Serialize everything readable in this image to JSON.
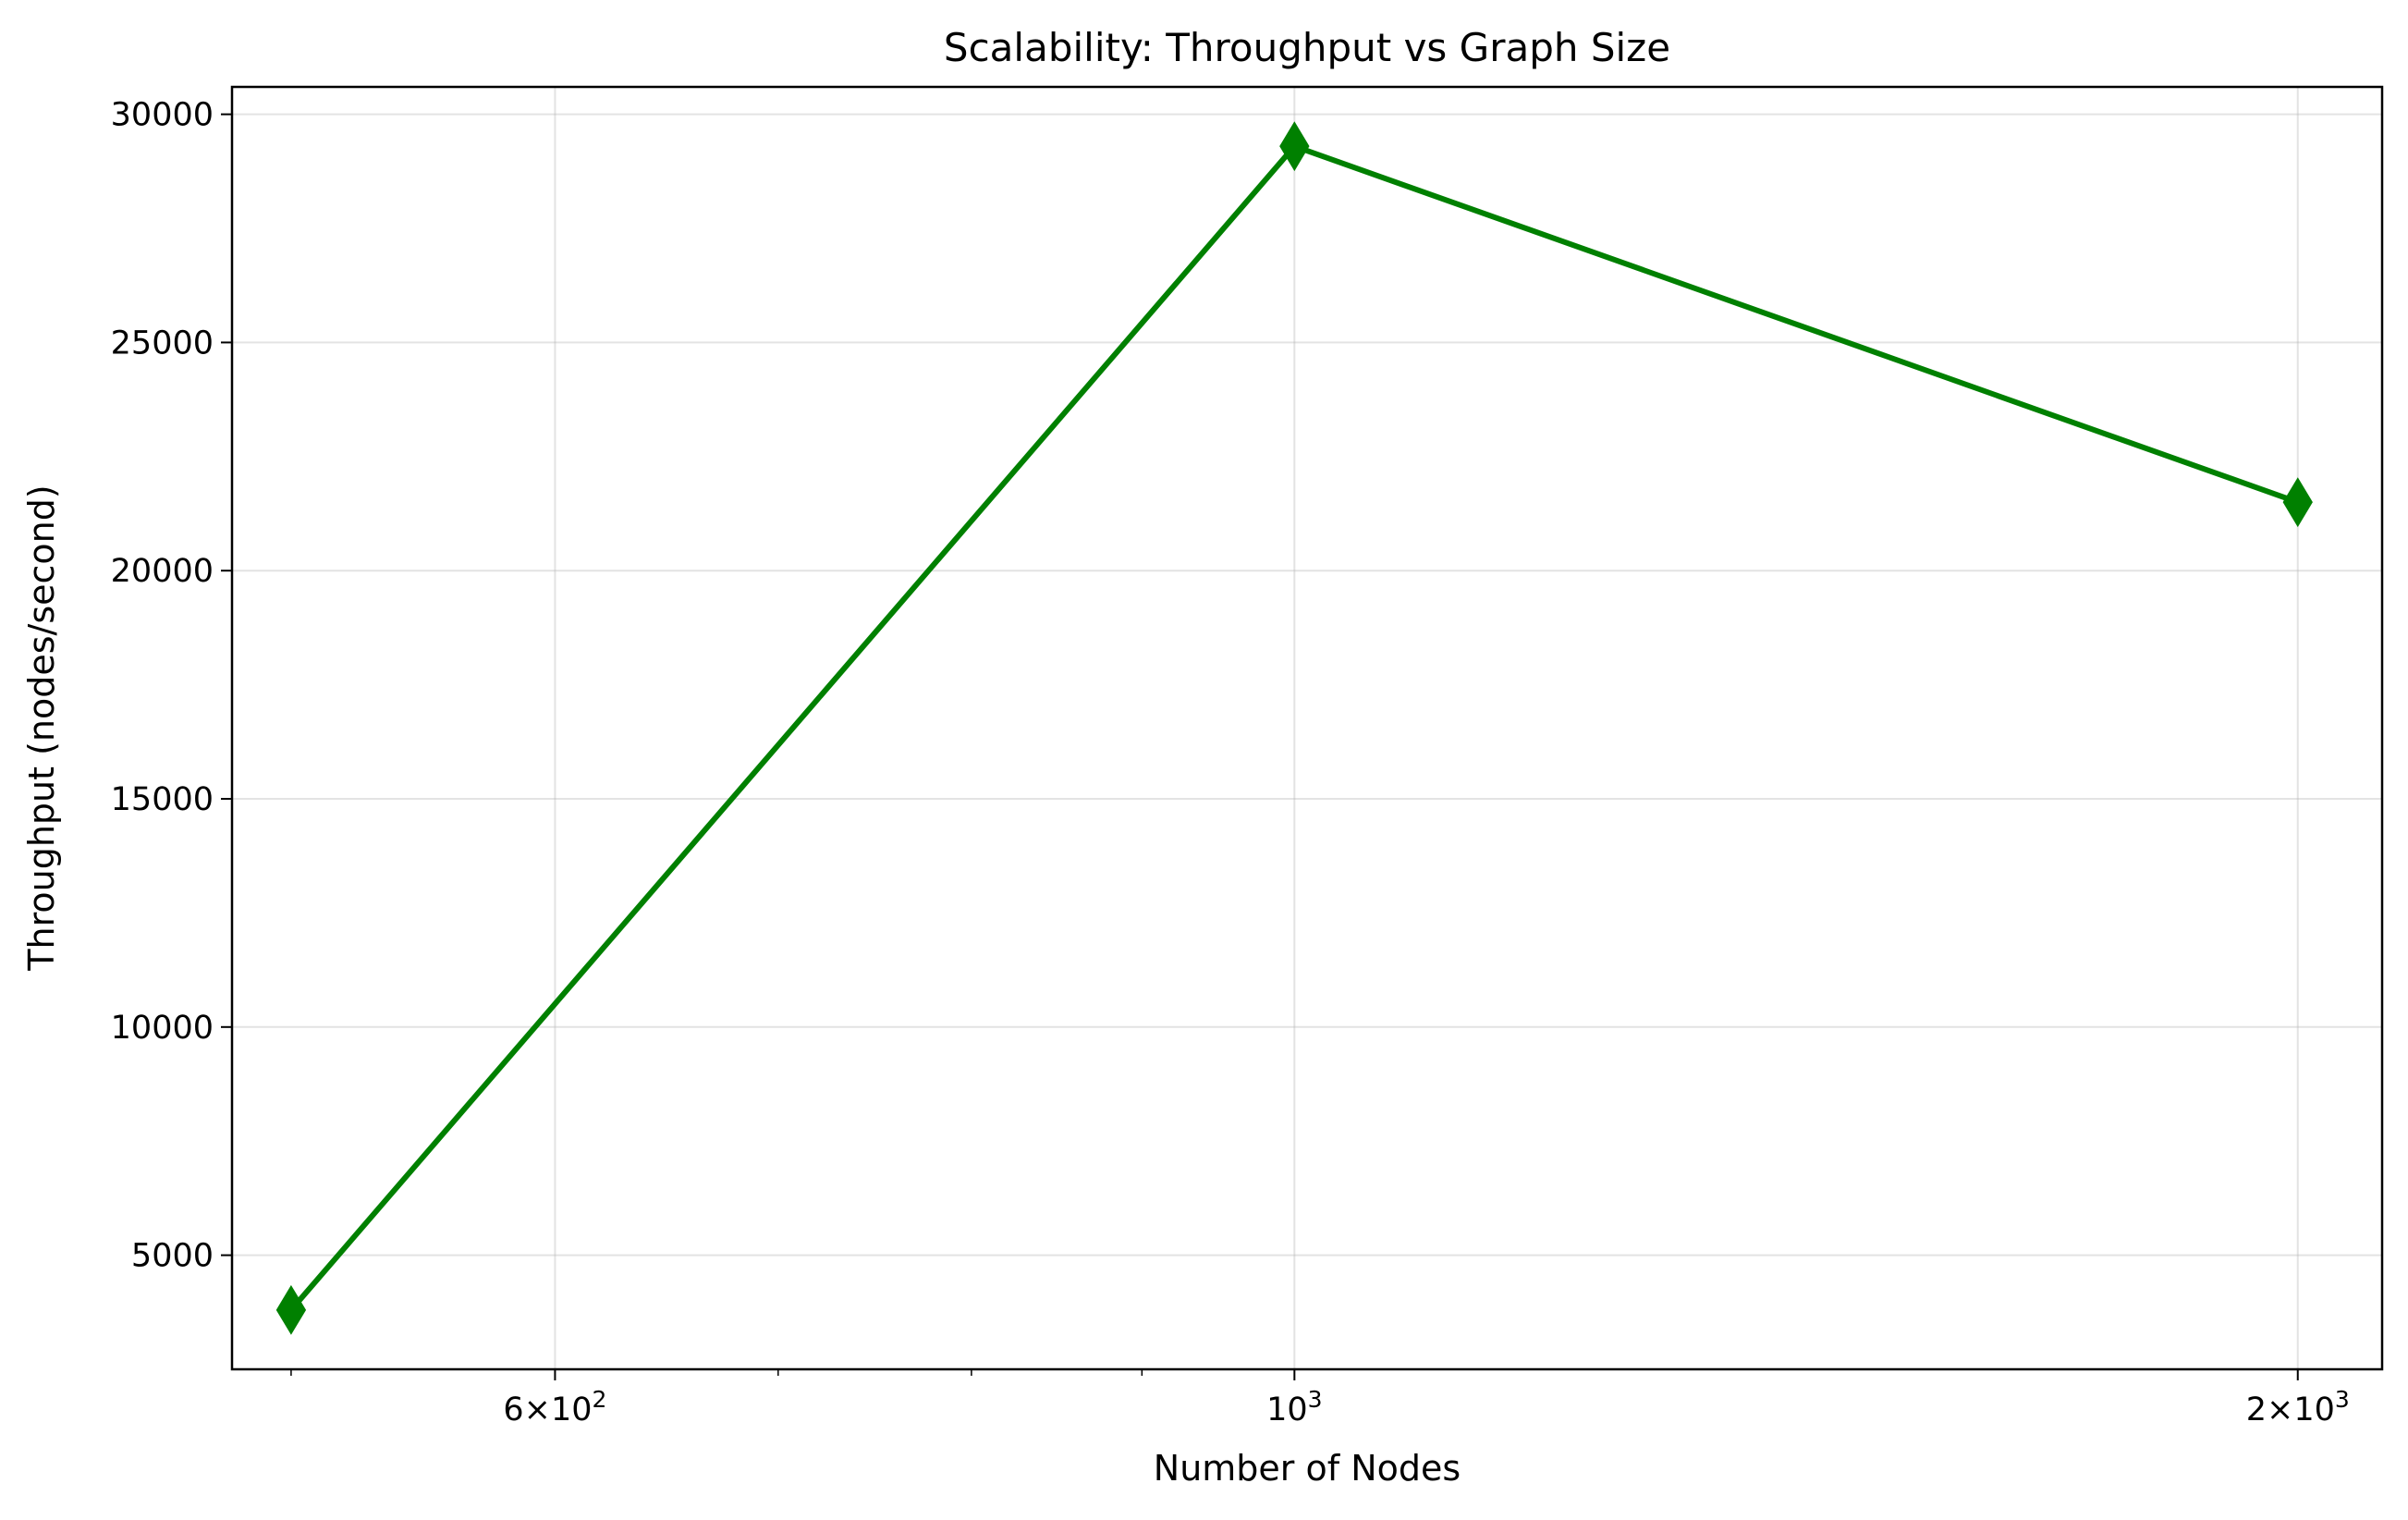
{
  "chart_data": {
    "type": "line",
    "title": "Scalability: Throughput vs Graph Size",
    "xlabel": "Number of Nodes",
    "ylabel": "Throughput (nodes/second)",
    "x_scale": "log",
    "xlim": [
      480,
      2120
    ],
    "ylim": [
      2500,
      30600
    ],
    "grid": true,
    "x_ticks": [
      {
        "value": 600,
        "base": "6×10",
        "exp": "2"
      },
      {
        "value": 1000,
        "base": "10",
        "exp": "3"
      },
      {
        "value": 2000,
        "base": "2×10",
        "exp": "3"
      }
    ],
    "x_minor_ticks": [
      500,
      700,
      800,
      900
    ],
    "y_ticks": [
      {
        "value": 5000,
        "label": "5000"
      },
      {
        "value": 10000,
        "label": "10000"
      },
      {
        "value": 15000,
        "label": "15000"
      },
      {
        "value": 20000,
        "label": "20000"
      },
      {
        "value": 25000,
        "label": "25000"
      },
      {
        "value": 30000,
        "label": "30000"
      }
    ],
    "series": [
      {
        "color": "#008000",
        "marker": "thin-diamond",
        "x": [
          500,
          1000,
          2000
        ],
        "y": [
          3800,
          29300,
          21500
        ]
      }
    ]
  }
}
